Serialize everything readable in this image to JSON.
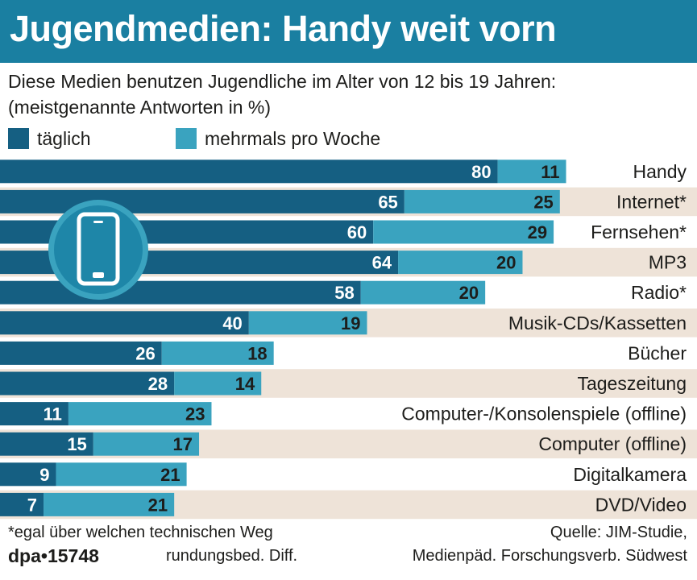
{
  "title": "Jugendmedien: Handy weit vorn",
  "subtitle_line1": "Diese Medien benutzen Jugendliche im Alter von 12 bis 19 Jahren:",
  "subtitle_line2": "(meistgenannte Antworten in %)",
  "colors": {
    "title_bg": "#1a7fa1",
    "daily": "#155f82",
    "weekly": "#3aa3bf",
    "row_alt": "#eee3d8"
  },
  "footnote": "*egal über welchen technischen Weg",
  "rounding_note": "rundungsbed. Diff.",
  "source_line1": "Quelle: JIM-Studie,",
  "source_line2": "Medienpäd. Forschungsverb. Südwest",
  "agency": "dpa•15748",
  "icon": "mobile-phone-icon",
  "chart_data": {
    "type": "bar",
    "orientation": "horizontal",
    "stacked": true,
    "categories": [
      "Handy",
      "Internet*",
      "Fernsehen*",
      "MP3",
      "Radio*",
      "Musik-CDs/Kassetten",
      "Bücher",
      "Tageszeitung",
      "Computer-/Konsolenspiele (offline)",
      "Computer (offline)",
      "Digitalkamera",
      "DVD/Video"
    ],
    "series": [
      {
        "name": "täglich",
        "values": [
          80,
          65,
          60,
          64,
          58,
          40,
          26,
          28,
          11,
          15,
          9,
          7
        ]
      },
      {
        "name": "mehrmals pro Woche",
        "values": [
          11,
          25,
          29,
          20,
          20,
          19,
          18,
          14,
          23,
          17,
          21,
          21
        ]
      }
    ],
    "xlim": [
      0,
      100
    ],
    "legend_position": "top-left",
    "grid": false
  }
}
